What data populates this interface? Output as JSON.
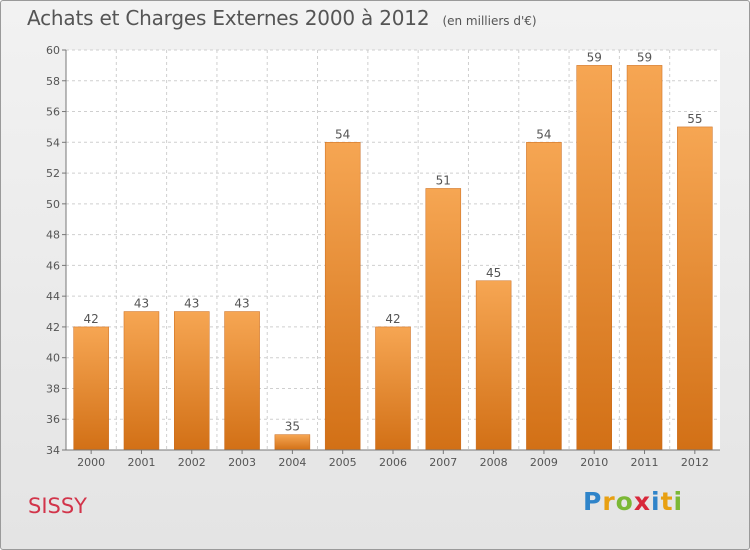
{
  "title": "Achats et Charges Externes 2000 à 2012",
  "subtitle": "(en milliers d'€)",
  "commune": "SISSY",
  "logo": {
    "letters": [
      "P",
      "r",
      "o",
      "x",
      "i",
      "t",
      "i"
    ],
    "colors": [
      "#2f84c9",
      "#e8a012",
      "#7bb835",
      "#d8283b",
      "#2f84c9",
      "#e8a012",
      "#7bb835"
    ]
  },
  "colors": {
    "bar_top": "#f6a653",
    "bar_bottom": "#d27016",
    "bar_edge": "#c9691a",
    "text": "#555555",
    "grid": "#cfcfcf"
  },
  "chart_data": {
    "type": "bar",
    "categories": [
      "2000",
      "2001",
      "2002",
      "2003",
      "2004",
      "2005",
      "2006",
      "2007",
      "2008",
      "2009",
      "2010",
      "2011",
      "2012"
    ],
    "values": [
      42,
      43,
      43,
      43,
      35,
      54,
      42,
      51,
      45,
      54,
      59,
      59,
      55
    ],
    "ylim": [
      34,
      60
    ],
    "yticks": [
      34,
      36,
      38,
      40,
      42,
      44,
      46,
      48,
      50,
      52,
      54,
      56,
      58,
      60
    ],
    "grid": true,
    "data_labels": true
  }
}
